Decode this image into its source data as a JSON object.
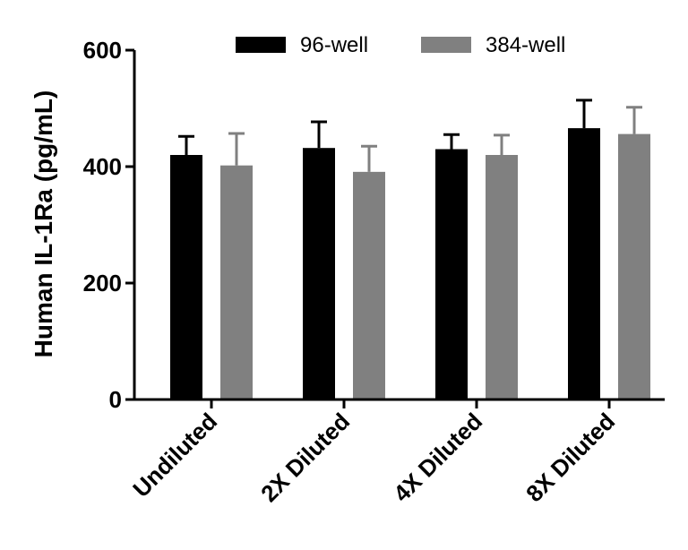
{
  "chart_data": {
    "type": "bar",
    "title": "",
    "xlabel": "",
    "ylabel": "Human IL-1Ra (pg/mL)",
    "ylim": [
      0,
      600
    ],
    "yticks": [
      0,
      200,
      400,
      600
    ],
    "categories": [
      "Undiluted",
      "2X Diluted",
      "4X Diluted",
      "8X Diluted"
    ],
    "series": [
      {
        "name": "96-well",
        "color": "#000000",
        "values": [
          420,
          432,
          430,
          466
        ],
        "errors": [
          32,
          45,
          25,
          48
        ]
      },
      {
        "name": "384-well",
        "color": "#808080",
        "values": [
          402,
          391,
          420,
          456
        ],
        "errors": [
          55,
          44,
          34,
          46
        ]
      }
    ],
    "legend_position": "top-center",
    "grid": false
  }
}
